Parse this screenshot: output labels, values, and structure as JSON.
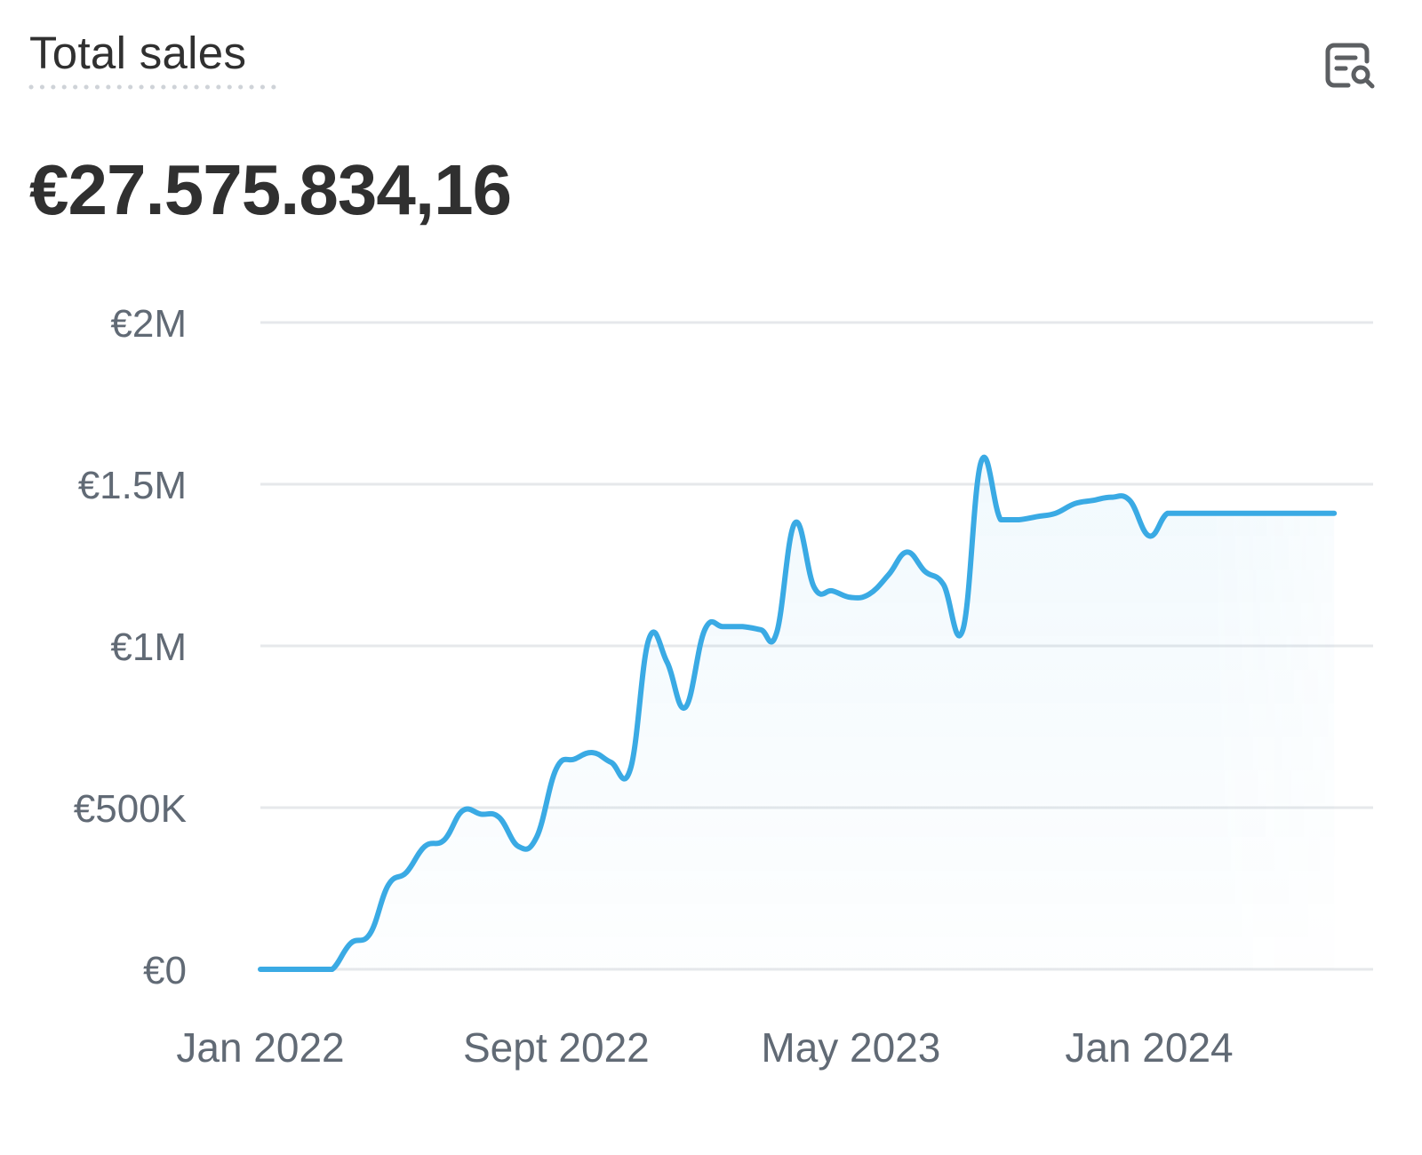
{
  "card": {
    "title": "Total sales",
    "value": "€27.575.834,16",
    "report_icon": "report-search-icon"
  },
  "colors": {
    "line": "#3aaae4",
    "grid": "#e6e8eb",
    "text": "#303030",
    "axis_text": "#616a75",
    "underline": "#cfd3d8"
  },
  "chart_data": {
    "type": "area",
    "title": "",
    "xlabel": "",
    "ylabel": "",
    "grid": true,
    "ylim": [
      0,
      2000000
    ],
    "yticks": [
      {
        "value": 0,
        "label": "€0"
      },
      {
        "value": 500000,
        "label": "€500K"
      },
      {
        "value": 1000000,
        "label": "€1M"
      },
      {
        "value": 1500000,
        "label": "€1.5M"
      },
      {
        "value": 2000000,
        "label": "€2M"
      }
    ],
    "xticks": [
      {
        "date": "2022-01-01",
        "label": "Jan 2022"
      },
      {
        "date": "2022-09-01",
        "label": "Sept 2022"
      },
      {
        "date": "2023-05-01",
        "label": "May 2023"
      },
      {
        "date": "2024-01-01",
        "label": "Jan 2024"
      }
    ],
    "series": [
      {
        "x": [
          "2022-01-01",
          "2022-01-16",
          "2022-02-01",
          "2022-02-16",
          "2022-03-01",
          "2022-03-16",
          "2022-04-01",
          "2022-04-16",
          "2022-05-01",
          "2022-05-16",
          "2022-06-01",
          "2022-06-16",
          "2022-07-01",
          "2022-07-16",
          "2022-08-01",
          "2022-08-16",
          "2022-09-01",
          "2022-09-16",
          "2022-10-01",
          "2022-10-16",
          "2022-11-01",
          "2022-11-16",
          "2022-12-01",
          "2022-12-16",
          "2023-01-01",
          "2023-01-16",
          "2023-02-01",
          "2023-02-16",
          "2023-03-01",
          "2023-03-16",
          "2023-04-01",
          "2023-04-16",
          "2023-05-01",
          "2023-05-16",
          "2023-06-01",
          "2023-06-16",
          "2023-07-01",
          "2023-07-16",
          "2023-08-01",
          "2023-08-16",
          "2023-09-01",
          "2023-09-16",
          "2023-10-01",
          "2023-10-16",
          "2023-11-01",
          "2023-11-16",
          "2023-12-01",
          "2023-12-16",
          "2024-01-01",
          "2024-01-16",
          "2024-02-01",
          "2024-02-16",
          "2024-03-01",
          "2024-03-16",
          "2024-04-01",
          "2024-04-16",
          "2024-05-01",
          "2024-05-16",
          "2024-06-01"
        ],
        "values": [
          0,
          0,
          0,
          0,
          0,
          80000,
          110000,
          260000,
          300000,
          380000,
          400000,
          490000,
          480000,
          470000,
          380000,
          410000,
          620000,
          650000,
          670000,
          640000,
          620000,
          1020000,
          950000,
          810000,
          1050000,
          1060000,
          1060000,
          1050000,
          1040000,
          1380000,
          1180000,
          1170000,
          1150000,
          1160000,
          1220000,
          1290000,
          1230000,
          1190000,
          1050000,
          1570000,
          1390000,
          1390000,
          1400000,
          1410000,
          1440000,
          1450000,
          1460000,
          1450000,
          1340000,
          1410000,
          1410000,
          1410000,
          1410000,
          1410000,
          1410000,
          1410000,
          1410000,
          1410000,
          1410000
        ]
      }
    ]
  }
}
